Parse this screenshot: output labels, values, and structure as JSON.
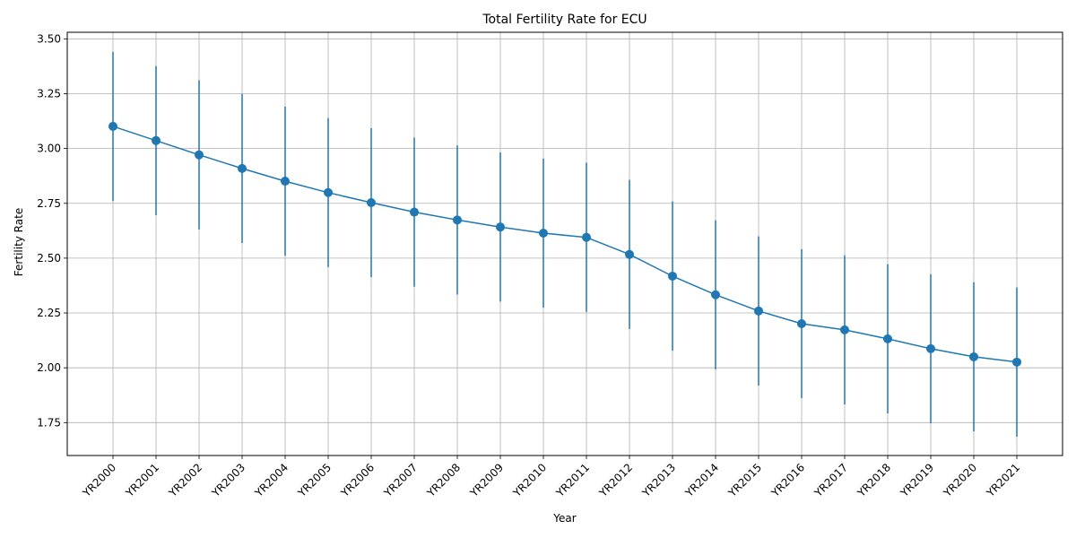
{
  "chart_data": {
    "type": "line",
    "title": "Total Fertility Rate for ECU",
    "xlabel": "Year",
    "ylabel": "Fertility Rate",
    "categories": [
      "YR2000",
      "YR2001",
      "YR2002",
      "YR2003",
      "YR2004",
      "YR2005",
      "YR2006",
      "YR2007",
      "YR2008",
      "YR2009",
      "YR2010",
      "YR2011",
      "YR2012",
      "YR2013",
      "YR2014",
      "YR2015",
      "YR2016",
      "YR2017",
      "YR2018",
      "YR2019",
      "YR2020",
      "YR2021"
    ],
    "values": [
      3.101,
      3.036,
      2.971,
      2.909,
      2.851,
      2.799,
      2.753,
      2.71,
      2.674,
      2.642,
      2.614,
      2.595,
      2.517,
      2.418,
      2.333,
      2.259,
      2.201,
      2.173,
      2.132,
      2.087,
      2.05,
      2.026
    ],
    "errors": [
      0.34,
      0.34,
      0.34,
      0.34,
      0.34,
      0.34,
      0.34,
      0.34,
      0.34,
      0.34,
      0.34,
      0.34,
      0.34,
      0.34,
      0.34,
      0.34,
      0.34,
      0.34,
      0.34,
      0.34,
      0.34,
      0.34
    ],
    "yticks": [
      "1.75",
      "2.00",
      "2.25",
      "2.50",
      "2.75",
      "3.00",
      "3.25",
      "3.50"
    ],
    "ylim": [
      1.6,
      3.53
    ],
    "grid": true,
    "color": "#1f77b4"
  }
}
